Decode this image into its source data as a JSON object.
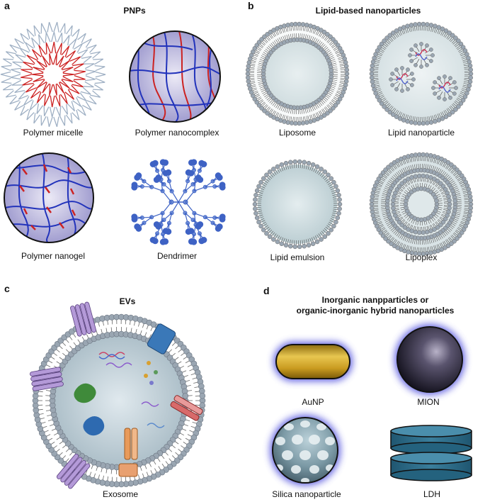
{
  "panels": {
    "a": {
      "letter": "a",
      "title": "PNPs",
      "captions": [
        "Polymer micelle",
        "Polymer nanocomplex",
        "Polymer nanogel",
        "Dendrimer"
      ]
    },
    "b": {
      "letter": "b",
      "title": "Lipid-based nanoparticles",
      "captions": [
        "Liposome",
        "Lipid nanoparticle",
        "Lipid emulsion",
        "Lipoplex"
      ]
    },
    "c": {
      "letter": "c",
      "title": "EVs",
      "captions": [
        "Exosome"
      ]
    },
    "d": {
      "letter": "d",
      "title_line1": "Inorganic nanpparticles or",
      "title_line2": "organic-inorganic hybrid nanoparticles",
      "captions": [
        "AuNP",
        "MION",
        "Silica nanoparticle",
        "LDH"
      ]
    }
  },
  "colors": {
    "polymer_blue": "#2233bb",
    "polymer_red": "#cc2222",
    "lipid_head": "#9aa6b2",
    "core_fill": "#d6e2e6",
    "gold": "#d4a826",
    "glow": "#5555dd",
    "ldh": "#2c6a86",
    "dendrimer": "#3e62c4"
  }
}
